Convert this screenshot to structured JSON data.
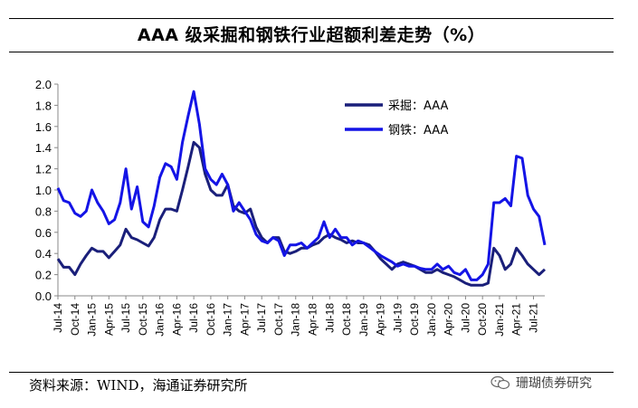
{
  "title": "AAA 级采掘和钢铁行业超额利差走势（%）",
  "source": "资料来源：WIND，海通证券研究所",
  "watermark": {
    "text": "珊瑚债券研究",
    "icon": "wechat-icon"
  },
  "colors": {
    "mining": "#1a1f7a",
    "steel": "#1414e6",
    "axis": "#888888",
    "text": "#000000"
  },
  "chart_data": {
    "type": "line",
    "title": "AAA 级采掘和钢铁行业超额利差走势（%）",
    "xlabel": "",
    "ylabel": "",
    "ylim": [
      0,
      2.0
    ],
    "yticks": [
      "0.0",
      "0.2",
      "0.4",
      "0.6",
      "0.8",
      "1.0",
      "1.2",
      "1.4",
      "1.6",
      "1.8",
      "2.0"
    ],
    "xticks": [
      "Jul-14",
      "Oct-14",
      "Jan-15",
      "Apr-15",
      "Jul-15",
      "Oct-15",
      "Jan-16",
      "Apr-16",
      "Jul-16",
      "Oct-16",
      "Jan-17",
      "Apr-17",
      "Jul-17",
      "Oct-17",
      "Jan-18",
      "Apr-18",
      "Jul-18",
      "Oct-18",
      "Jan-19",
      "Apr-19",
      "Jul-19",
      "Oct-19",
      "Jan-20",
      "Apr-20",
      "Jul-20",
      "Oct-20",
      "Jan-21",
      "Apr-21",
      "Jul-21"
    ],
    "x_start": "2014-07",
    "x_end": "2021-09",
    "legend": "top-right",
    "grid": false,
    "series": [
      {
        "name": "采掘：AAA",
        "color": "#1a1f7a",
        "points": [
          [
            "2014-07",
            0.35
          ],
          [
            "2014-08",
            0.27
          ],
          [
            "2014-09",
            0.27
          ],
          [
            "2014-10",
            0.2
          ],
          [
            "2014-11",
            0.3
          ],
          [
            "2014-12",
            0.38
          ],
          [
            "2015-01",
            0.45
          ],
          [
            "2015-02",
            0.42
          ],
          [
            "2015-03",
            0.42
          ],
          [
            "2015-04",
            0.36
          ],
          [
            "2015-05",
            0.42
          ],
          [
            "2015-06",
            0.48
          ],
          [
            "2015-07",
            0.63
          ],
          [
            "2015-08",
            0.55
          ],
          [
            "2015-09",
            0.53
          ],
          [
            "2015-10",
            0.5
          ],
          [
            "2015-11",
            0.47
          ],
          [
            "2015-12",
            0.55
          ],
          [
            "2016-01",
            0.72
          ],
          [
            "2016-02",
            0.82
          ],
          [
            "2016-03",
            0.82
          ],
          [
            "2016-04",
            0.8
          ],
          [
            "2016-05",
            1.0
          ],
          [
            "2016-06",
            1.22
          ],
          [
            "2016-07",
            1.45
          ],
          [
            "2016-08",
            1.4
          ],
          [
            "2016-09",
            1.15
          ],
          [
            "2016-10",
            1.0
          ],
          [
            "2016-11",
            0.95
          ],
          [
            "2016-12",
            0.95
          ],
          [
            "2017-01",
            1.05
          ],
          [
            "2017-02",
            0.85
          ],
          [
            "2017-03",
            0.8
          ],
          [
            "2017-04",
            0.78
          ],
          [
            "2017-05",
            0.82
          ],
          [
            "2017-06",
            0.65
          ],
          [
            "2017-07",
            0.55
          ],
          [
            "2017-08",
            0.5
          ],
          [
            "2017-09",
            0.55
          ],
          [
            "2017-10",
            0.55
          ],
          [
            "2017-11",
            0.42
          ],
          [
            "2017-12",
            0.4
          ],
          [
            "2018-01",
            0.42
          ],
          [
            "2018-02",
            0.45
          ],
          [
            "2018-03",
            0.45
          ],
          [
            "2018-04",
            0.48
          ],
          [
            "2018-05",
            0.5
          ],
          [
            "2018-06",
            0.55
          ],
          [
            "2018-07",
            0.58
          ],
          [
            "2018-08",
            0.55
          ],
          [
            "2018-09",
            0.53
          ],
          [
            "2018-10",
            0.5
          ],
          [
            "2018-11",
            0.52
          ],
          [
            "2018-12",
            0.5
          ],
          [
            "2019-01",
            0.5
          ],
          [
            "2019-02",
            0.48
          ],
          [
            "2019-03",
            0.42
          ],
          [
            "2019-04",
            0.35
          ],
          [
            "2019-05",
            0.3
          ],
          [
            "2019-06",
            0.25
          ],
          [
            "2019-07",
            0.3
          ],
          [
            "2019-08",
            0.32
          ],
          [
            "2019-09",
            0.3
          ],
          [
            "2019-10",
            0.28
          ],
          [
            "2019-11",
            0.25
          ],
          [
            "2019-12",
            0.22
          ],
          [
            "2020-01",
            0.22
          ],
          [
            "2020-02",
            0.25
          ],
          [
            "2020-03",
            0.22
          ],
          [
            "2020-04",
            0.2
          ],
          [
            "2020-05",
            0.18
          ],
          [
            "2020-06",
            0.15
          ],
          [
            "2020-07",
            0.12
          ],
          [
            "2020-08",
            0.1
          ],
          [
            "2020-09",
            0.1
          ],
          [
            "2020-10",
            0.1
          ],
          [
            "2020-11",
            0.12
          ],
          [
            "2020-12",
            0.45
          ],
          [
            "2021-01",
            0.38
          ],
          [
            "2021-02",
            0.25
          ],
          [
            "2021-03",
            0.3
          ],
          [
            "2021-04",
            0.45
          ],
          [
            "2021-05",
            0.38
          ],
          [
            "2021-06",
            0.3
          ],
          [
            "2021-07",
            0.25
          ],
          [
            "2021-08",
            0.2
          ],
          [
            "2021-09",
            0.25
          ]
        ]
      },
      {
        "name": "钢铁：AAA",
        "color": "#1414e6",
        "points": [
          [
            "2014-07",
            1.02
          ],
          [
            "2014-08",
            0.9
          ],
          [
            "2014-09",
            0.88
          ],
          [
            "2014-10",
            0.78
          ],
          [
            "2014-11",
            0.75
          ],
          [
            "2014-12",
            0.8
          ],
          [
            "2015-01",
            1.0
          ],
          [
            "2015-02",
            0.88
          ],
          [
            "2015-03",
            0.8
          ],
          [
            "2015-04",
            0.68
          ],
          [
            "2015-05",
            0.72
          ],
          [
            "2015-06",
            0.88
          ],
          [
            "2015-07",
            1.2
          ],
          [
            "2015-08",
            0.82
          ],
          [
            "2015-09",
            1.03
          ],
          [
            "2015-10",
            0.7
          ],
          [
            "2015-11",
            0.65
          ],
          [
            "2015-12",
            0.85
          ],
          [
            "2016-01",
            1.12
          ],
          [
            "2016-02",
            1.25
          ],
          [
            "2016-03",
            1.22
          ],
          [
            "2016-04",
            1.1
          ],
          [
            "2016-05",
            1.45
          ],
          [
            "2016-06",
            1.7
          ],
          [
            "2016-07",
            1.93
          ],
          [
            "2016-08",
            1.62
          ],
          [
            "2016-09",
            1.2
          ],
          [
            "2016-10",
            1.1
          ],
          [
            "2016-11",
            1.05
          ],
          [
            "2016-12",
            1.15
          ],
          [
            "2017-01",
            1.05
          ],
          [
            "2017-02",
            0.8
          ],
          [
            "2017-03",
            0.88
          ],
          [
            "2017-04",
            0.8
          ],
          [
            "2017-05",
            0.72
          ],
          [
            "2017-06",
            0.58
          ],
          [
            "2017-07",
            0.52
          ],
          [
            "2017-08",
            0.5
          ],
          [
            "2017-09",
            0.55
          ],
          [
            "2017-10",
            0.52
          ],
          [
            "2017-11",
            0.38
          ],
          [
            "2017-12",
            0.48
          ],
          [
            "2018-01",
            0.48
          ],
          [
            "2018-02",
            0.5
          ],
          [
            "2018-03",
            0.45
          ],
          [
            "2018-04",
            0.5
          ],
          [
            "2018-05",
            0.55
          ],
          [
            "2018-06",
            0.7
          ],
          [
            "2018-07",
            0.55
          ],
          [
            "2018-08",
            0.63
          ],
          [
            "2018-09",
            0.55
          ],
          [
            "2018-10",
            0.55
          ],
          [
            "2018-11",
            0.48
          ],
          [
            "2018-12",
            0.52
          ],
          [
            "2019-01",
            0.5
          ],
          [
            "2019-02",
            0.46
          ],
          [
            "2019-03",
            0.42
          ],
          [
            "2019-04",
            0.38
          ],
          [
            "2019-05",
            0.35
          ],
          [
            "2019-06",
            0.32
          ],
          [
            "2019-07",
            0.28
          ],
          [
            "2019-08",
            0.3
          ],
          [
            "2019-09",
            0.28
          ],
          [
            "2019-10",
            0.28
          ],
          [
            "2019-11",
            0.26
          ],
          [
            "2019-12",
            0.25
          ],
          [
            "2020-01",
            0.25
          ],
          [
            "2020-02",
            0.3
          ],
          [
            "2020-03",
            0.25
          ],
          [
            "2020-04",
            0.28
          ],
          [
            "2020-05",
            0.22
          ],
          [
            "2020-06",
            0.2
          ],
          [
            "2020-07",
            0.25
          ],
          [
            "2020-08",
            0.15
          ],
          [
            "2020-09",
            0.15
          ],
          [
            "2020-10",
            0.2
          ],
          [
            "2020-11",
            0.3
          ],
          [
            "2020-12",
            0.88
          ],
          [
            "2021-01",
            0.88
          ],
          [
            "2021-02",
            0.92
          ],
          [
            "2021-03",
            0.85
          ],
          [
            "2021-04",
            1.32
          ],
          [
            "2021-05",
            1.3
          ],
          [
            "2021-06",
            0.95
          ],
          [
            "2021-07",
            0.82
          ],
          [
            "2021-08",
            0.75
          ],
          [
            "2021-09",
            0.48
          ]
        ]
      }
    ]
  }
}
